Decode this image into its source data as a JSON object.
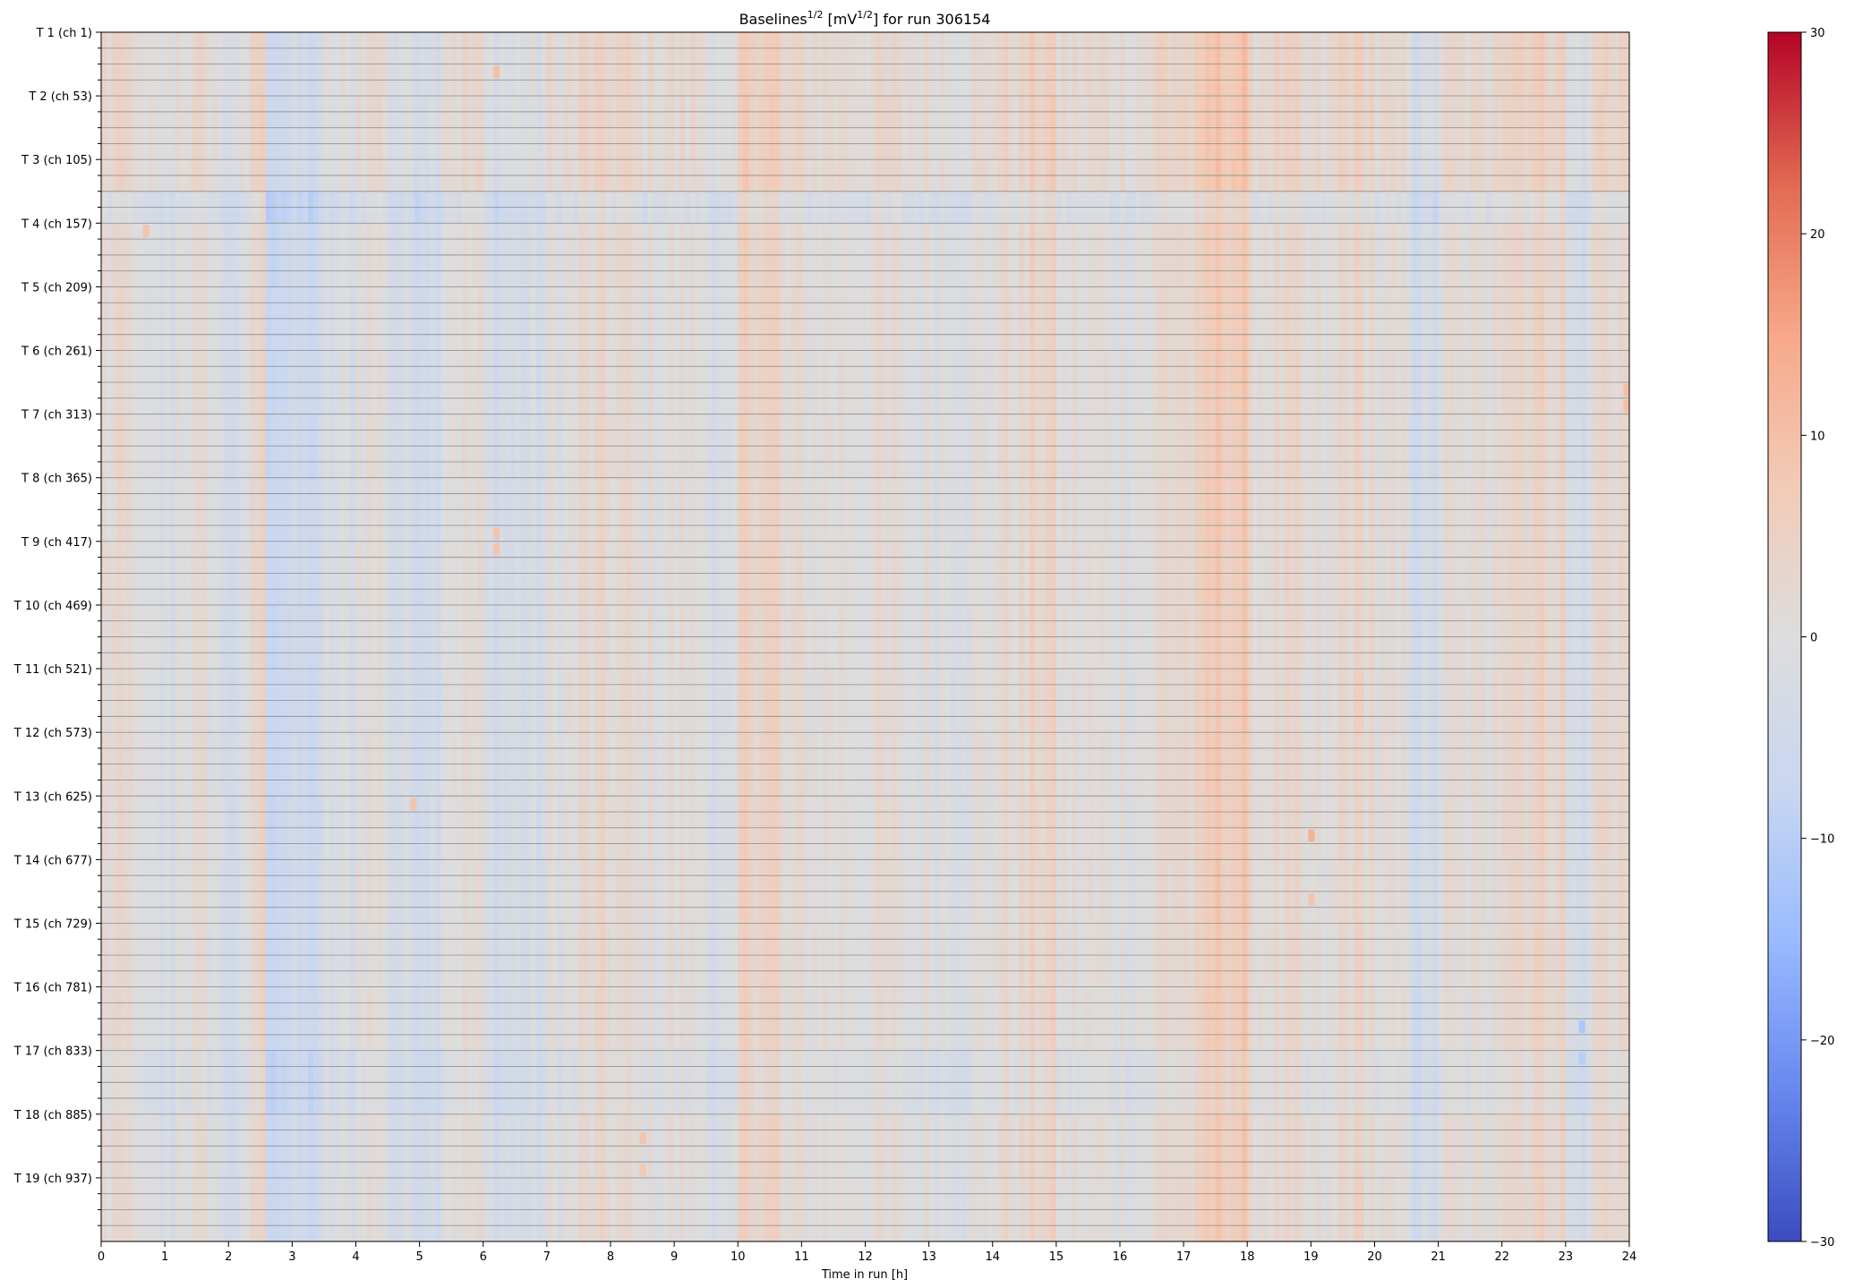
{
  "chart_data": {
    "type": "heatmap",
    "title": {
      "prefix": "Baselines",
      "sup1": "1/2",
      "middle": " [mV",
      "sup2": "1/2",
      "suffix": "] for run 306154"
    },
    "xlabel": "Time in run [h]",
    "xlim": [
      0,
      24
    ],
    "x_ticks": [
      "0",
      "1",
      "2",
      "3",
      "4",
      "5",
      "6",
      "7",
      "8",
      "9",
      "10",
      "11",
      "12",
      "13",
      "14",
      "15",
      "16",
      "17",
      "18",
      "19",
      "20",
      "21",
      "22",
      "23",
      "24"
    ],
    "y_labeled_ticks": [
      "T 1 (ch 1)",
      "T 2 (ch 53)",
      "T 3 (ch 105)",
      "T 4 (ch 157)",
      "T 5 (ch 209)",
      "T 6 (ch 261)",
      "T 7 (ch 313)",
      "T 8 (ch 365)",
      "T 9 (ch 417)",
      "T 10 (ch 469)",
      "T 11 (ch 521)",
      "T 12 (ch 573)",
      "T 13 (ch 625)",
      "T 14 (ch 677)",
      "T 15 (ch 729)",
      "T 16 (ch 781)",
      "T 17 (ch 833)",
      "T 18 (ch 885)",
      "T 19 (ch 937)"
    ],
    "y_rows": 76,
    "y_minor_ticks_per_tower": 4,
    "colorbar": {
      "min": -30,
      "max": 30,
      "ticks": [
        "30",
        "20",
        "10",
        "0",
        "−10",
        "−20",
        "−30"
      ],
      "colormap": "coolwarm",
      "colors": [
        "#3b4cc0",
        "#6788ee",
        "#9abbff",
        "#c9d7f0",
        "#dddddd",
        "#f2cbb7",
        "#f7a889",
        "#e26952",
        "#b40426"
      ]
    },
    "columns_per_hour": 12,
    "time_profile": [
      {
        "start": 0.0,
        "end": 0.6,
        "value": 1.5
      },
      {
        "start": 0.6,
        "end": 1.2,
        "value": -2.0
      },
      {
        "start": 1.2,
        "end": 1.8,
        "value": 0.5
      },
      {
        "start": 1.8,
        "end": 2.3,
        "value": -3.0
      },
      {
        "start": 2.3,
        "end": 2.6,
        "value": 3.5
      },
      {
        "start": 2.6,
        "end": 3.5,
        "value": -6.0
      },
      {
        "start": 3.5,
        "end": 4.0,
        "value": -2.0
      },
      {
        "start": 4.0,
        "end": 4.5,
        "value": 1.0
      },
      {
        "start": 4.5,
        "end": 5.3,
        "value": -3.0
      },
      {
        "start": 5.3,
        "end": 6.0,
        "value": 1.0
      },
      {
        "start": 6.0,
        "end": 7.0,
        "value": -3.0
      },
      {
        "start": 7.0,
        "end": 7.5,
        "value": 0.0
      },
      {
        "start": 7.5,
        "end": 8.3,
        "value": 2.0
      },
      {
        "start": 8.3,
        "end": 9.6,
        "value": 0.5
      },
      {
        "start": 9.6,
        "end": 10.0,
        "value": -3.0
      },
      {
        "start": 10.0,
        "end": 10.7,
        "value": 5.0
      },
      {
        "start": 10.7,
        "end": 12.5,
        "value": 1.0
      },
      {
        "start": 12.5,
        "end": 14.0,
        "value": 0.0
      },
      {
        "start": 14.0,
        "end": 14.6,
        "value": 2.0
      },
      {
        "start": 14.6,
        "end": 15.0,
        "value": 4.0
      },
      {
        "start": 15.0,
        "end": 16.6,
        "value": 0.5
      },
      {
        "start": 16.6,
        "end": 17.3,
        "value": 3.0
      },
      {
        "start": 17.3,
        "end": 18.0,
        "value": 7.0
      },
      {
        "start": 18.0,
        "end": 18.8,
        "value": 2.0
      },
      {
        "start": 18.8,
        "end": 19.4,
        "value": 0.0
      },
      {
        "start": 19.4,
        "end": 20.0,
        "value": 3.0
      },
      {
        "start": 20.0,
        "end": 20.6,
        "value": 0.0
      },
      {
        "start": 20.6,
        "end": 21.0,
        "value": -4.0
      },
      {
        "start": 21.0,
        "end": 21.8,
        "value": 0.5
      },
      {
        "start": 21.8,
        "end": 23.0,
        "value": 4.0
      },
      {
        "start": 23.0,
        "end": 23.4,
        "value": -3.0
      },
      {
        "start": 23.4,
        "end": 24.0,
        "value": 3.0
      }
    ],
    "row_band_offsets": [
      {
        "start_row": 0,
        "end_row": 10,
        "value": 1.5
      },
      {
        "start_row": 10,
        "end_row": 12,
        "value": -2.5
      },
      {
        "start_row": 12,
        "end_row": 64,
        "value": 0.0
      },
      {
        "start_row": 64,
        "end_row": 68,
        "value": -1.5
      },
      {
        "start_row": 68,
        "end_row": 76,
        "value": 0.0
      }
    ],
    "hot_spots": [
      {
        "t": 6.2,
        "row": 2,
        "value": 10
      },
      {
        "t": 0.7,
        "row": 12,
        "value": 9
      },
      {
        "t": 6.2,
        "row": 31,
        "value": 9
      },
      {
        "t": 6.2,
        "row": 32,
        "value": 9
      },
      {
        "t": 4.9,
        "row": 48,
        "value": 9
      },
      {
        "t": 19.0,
        "row": 50,
        "value": 13
      },
      {
        "t": 19.0,
        "row": 54,
        "value": 9
      },
      {
        "t": 23.25,
        "row": 62,
        "value": -12
      },
      {
        "t": 23.25,
        "row": 64,
        "value": -10
      },
      {
        "t": 8.5,
        "row": 69,
        "value": 9
      },
      {
        "t": 8.5,
        "row": 71,
        "value": 8
      },
      {
        "t": 23.95,
        "row": 22,
        "value": 10
      },
      {
        "t": 23.95,
        "row": 23,
        "value": 10
      }
    ]
  }
}
